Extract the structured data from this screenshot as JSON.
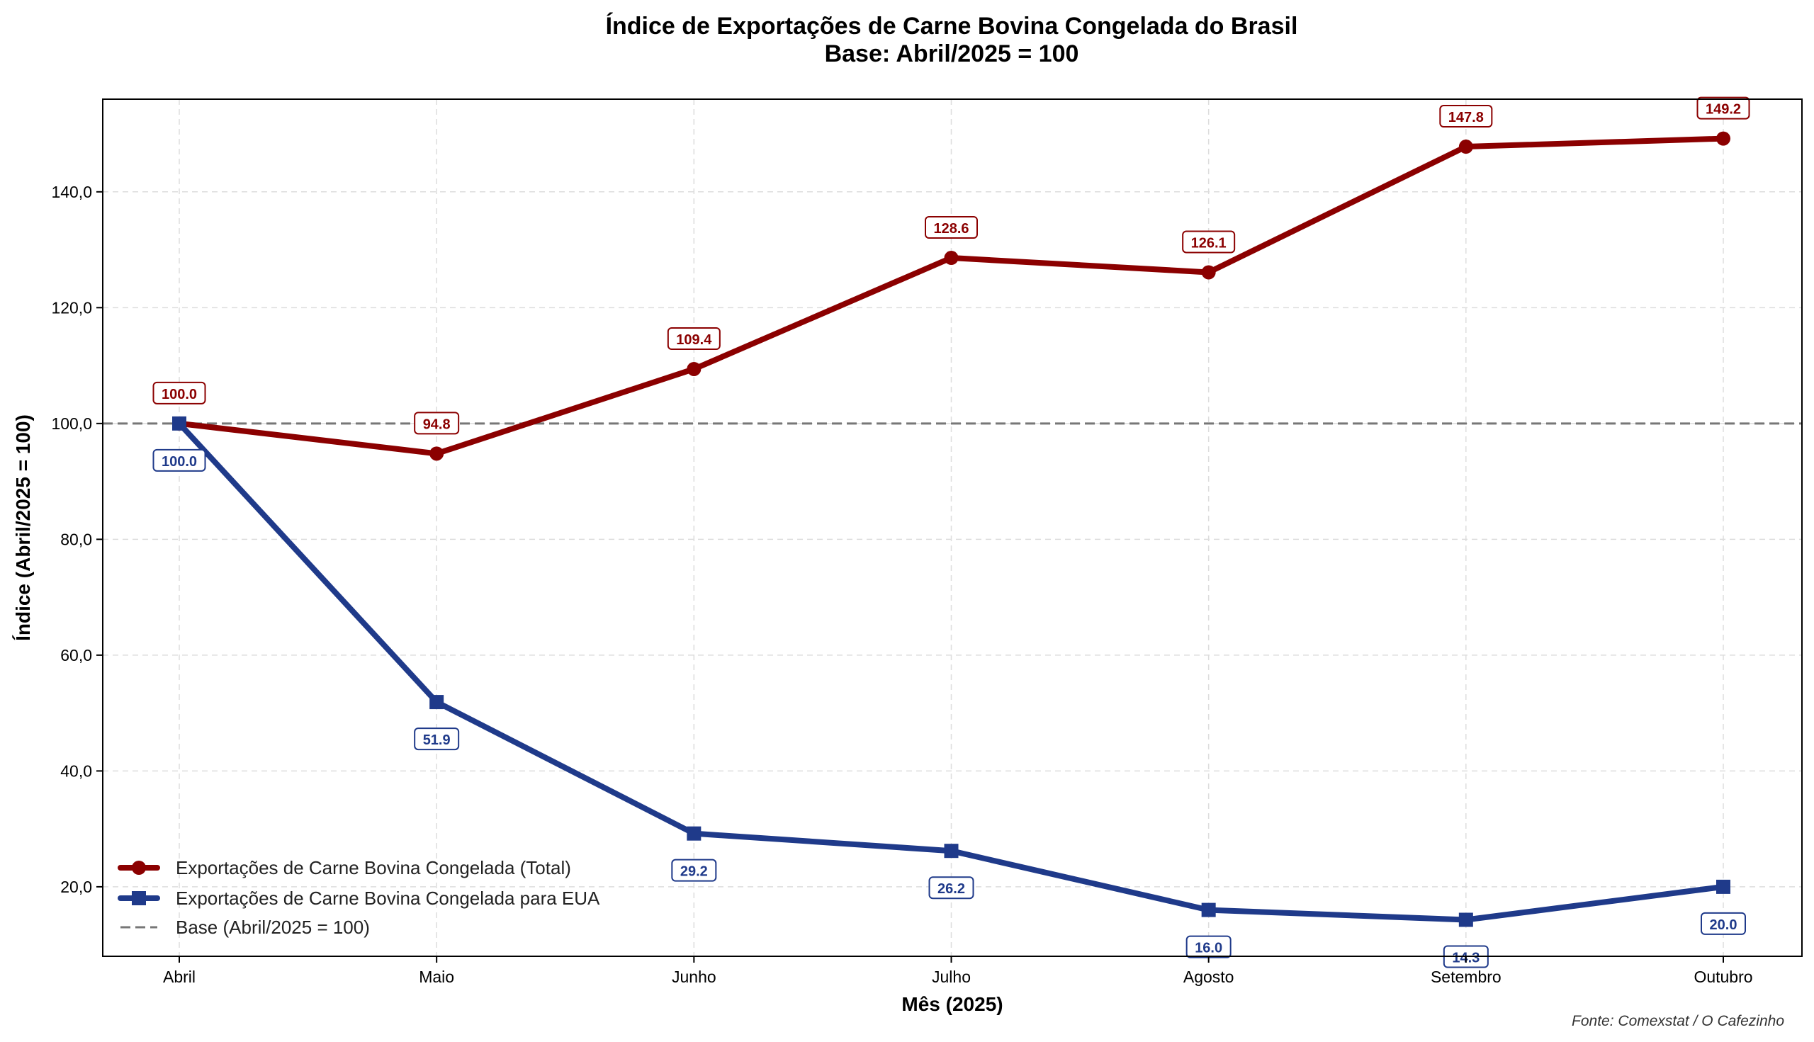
{
  "chart_data": {
    "type": "line",
    "title": "Índice de Exportações de Carne Bovina Congelada do Brasil",
    "subtitle": "Base: Abril/2025 = 100",
    "xlabel": "Mês (2025)",
    "ylabel": "Índice (Abril/2025 = 100)",
    "categories": [
      "Abril",
      "Maio",
      "Junho",
      "Julho",
      "Agosto",
      "Setembro",
      "Outubro"
    ],
    "ylim": [
      8,
      156
    ],
    "yticks": [
      20,
      40,
      60,
      80,
      100,
      120,
      140
    ],
    "ytick_labels": [
      "20,0",
      "40,0",
      "60,0",
      "80,0",
      "100,0",
      "120,0",
      "140,0"
    ],
    "grid": true,
    "legend_position": "bottom-left",
    "series": [
      {
        "name": "Exportações de Carne Bovina Congelada (Total)",
        "marker": "circle",
        "color": "#8B0000",
        "values": [
          100.0,
          94.8,
          109.4,
          128.6,
          126.1,
          147.8,
          149.2
        ],
        "labels": [
          "100.0",
          "94.8",
          "109.4",
          "128.6",
          "126.1",
          "147.8",
          "149.2"
        ]
      },
      {
        "name": "Exportações de Carne Bovina Congelada para EUA",
        "marker": "square",
        "color": "#1F3A8A",
        "values": [
          100.0,
          51.9,
          29.2,
          26.2,
          16.0,
          14.3,
          20.0
        ],
        "labels": [
          "100.0",
          "51.9",
          "29.2",
          "26.2",
          "16.0",
          "14.3",
          "20.0"
        ]
      }
    ],
    "reference_line": {
      "name": "Base (Abril/2025 = 100)",
      "value": 100,
      "color": "#777777"
    },
    "source": "Fonte: Comexstat / O Cafezinho"
  }
}
